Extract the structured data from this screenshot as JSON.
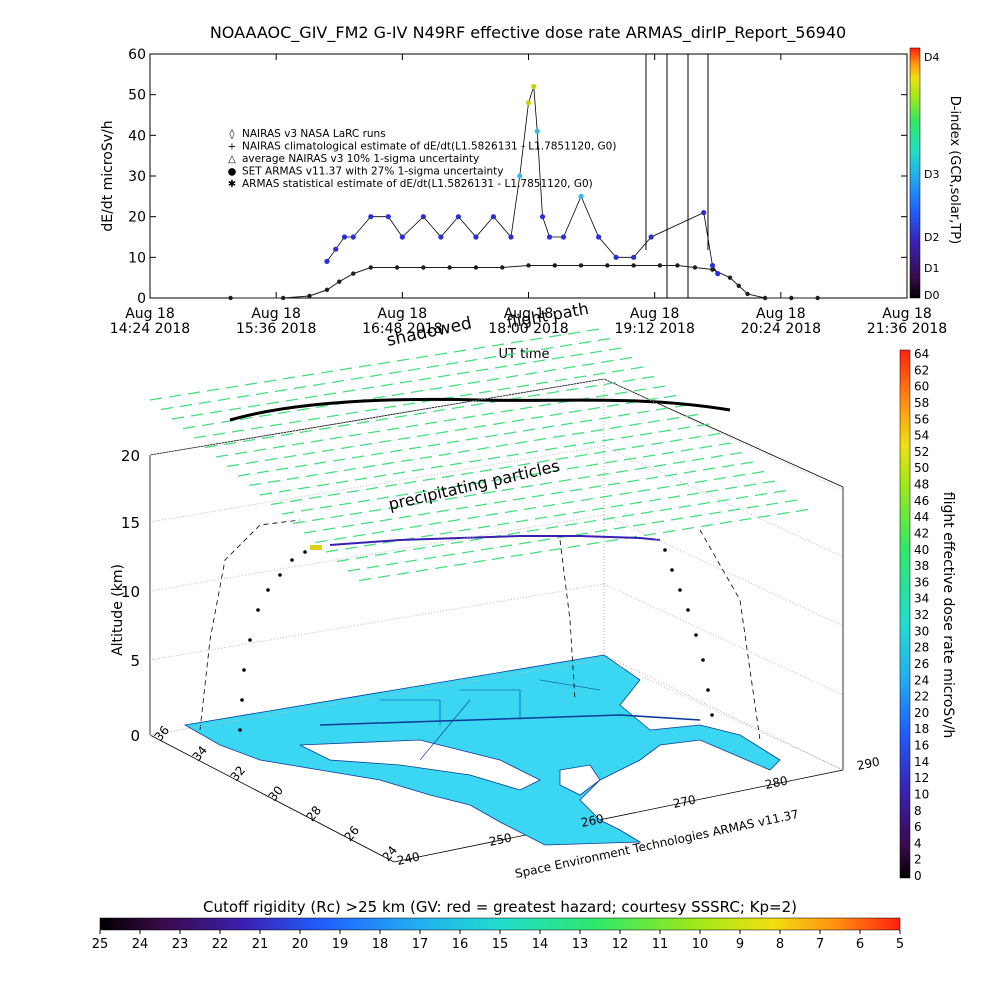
{
  "title": "NOAAAOC_GIV_FM2 G-IV    N49RF   effective dose rate ARMAS_dirIP_Report_56940",
  "top": {
    "ylabel": "dE/dt microSv/h",
    "xlabel": "UT time",
    "y_ticks": [
      "0",
      "10",
      "20",
      "30",
      "40",
      "50",
      "60"
    ],
    "x_ticks": [
      {
        "line1": "Aug 18",
        "line2": "14:24 2018"
      },
      {
        "line1": "Aug 18",
        "line2": "15:36 2018"
      },
      {
        "line1": "Aug 18",
        "line2": "16:48 2018"
      },
      {
        "line1": "Aug 18",
        "line2": "18:00 2018"
      },
      {
        "line1": "Aug 18",
        "line2": "19:12 2018"
      },
      {
        "line1": "Aug 18",
        "line2": "20:24 2018"
      },
      {
        "line1": "Aug 18",
        "line2": "21:36 2018"
      }
    ],
    "legend": [
      {
        "symbol": "◊",
        "text": "NAIRAS v3 NASA LaRC runs"
      },
      {
        "symbol": "+",
        "text": "NAIRAS climatological estimate of dE/dt(L1.5826131 - L1.7851120, G0)"
      },
      {
        "symbol": "△",
        "text": "average NAIRAS v3 10% 1-sigma uncertainty"
      },
      {
        "symbol": "●",
        "text": "SET ARMAS v11.37 with 27% 1-sigma uncertainty"
      },
      {
        "symbol": "✱",
        "text": "ARMAS statistical estimate of dE/dt(L1.5826131 - L1.7851120, G0)"
      }
    ],
    "overlay_shadowed": "shadowed",
    "overlay_flightpath": "flight path",
    "dindex_label": "D-index (GCR,solar,TP)",
    "dindex_ticks": [
      "D0",
      "D1",
      "D2",
      "D3",
      "D4"
    ]
  },
  "bottom": {
    "ylabel": "Altitude (km)",
    "z_ticks": [
      "0",
      "5",
      "10",
      "15",
      "20"
    ],
    "lat_ticks": [
      "36",
      "34",
      "32",
      "30",
      "28",
      "26",
      "24"
    ],
    "lon_ticks": [
      "240",
      "250",
      "260",
      "270",
      "280",
      "290"
    ],
    "precip_label": "precipitating particles",
    "credit": "Space Environment Technologies ARMAS v11.37",
    "colorbar_label": "flight effective dose rate microSv/h",
    "colorbar_ticks": [
      "0",
      "2",
      "4",
      "6",
      "8",
      "10",
      "12",
      "14",
      "16",
      "18",
      "20",
      "22",
      "24",
      "26",
      "28",
      "30",
      "32",
      "34",
      "36",
      "38",
      "40",
      "42",
      "44",
      "46",
      "48",
      "50",
      "52",
      "54",
      "56",
      "58",
      "60",
      "62",
      "64"
    ]
  },
  "cutoff": {
    "title": "Cutoff rigidity (Rc) >25 km (GV: red = greatest hazard; courtesy SSSRC; Kp=2)",
    "ticks": [
      "25",
      "24",
      "23",
      "22",
      "21",
      "20",
      "19",
      "18",
      "17",
      "16",
      "15",
      "14",
      "13",
      "12",
      "11",
      "10",
      "9",
      "8",
      "7",
      "6",
      "5"
    ]
  },
  "chart_data": [
    {
      "type": "scatter",
      "title": "NOAAAOC_GIV_FM2 G-IV    N49RF   effective dose rate ARMAS_dirIP_Report_56940",
      "xlabel": "UT time",
      "ylabel": "dE/dt microSv/h",
      "xlim": [
        "2018-08-18 14:24",
        "2018-08-18 21:36"
      ],
      "ylim": [
        0,
        60
      ],
      "legend_position": "upper-left",
      "series": [
        {
          "name": "NAIRAS v3 NASA LaRC runs",
          "x": [
            "15:10",
            "15:40",
            "15:55",
            "16:05",
            "16:12",
            "16:20",
            "16:30",
            "16:45",
            "17:00",
            "17:15",
            "17:30",
            "17:45",
            "18:00",
            "18:15",
            "18:30",
            "18:45",
            "19:00",
            "19:15",
            "19:25",
            "19:35",
            "19:45",
            "19:55",
            "20:00",
            "20:05",
            "20:15",
            "20:30",
            "20:45"
          ],
          "y": [
            0,
            0,
            0.5,
            2,
            4,
            6,
            7.5,
            7.5,
            7.5,
            7.5,
            7.5,
            7.5,
            8,
            8,
            8,
            8,
            8,
            8,
            8,
            7.5,
            7,
            5,
            3,
            1,
            0,
            0,
            0
          ]
        },
        {
          "name": "SET ARMAS v11.37 with 27% 1-sigma uncertainty",
          "x": [
            "16:05",
            "16:10",
            "16:15",
            "16:20",
            "16:30",
            "16:40",
            "16:48",
            "17:00",
            "17:10",
            "17:20",
            "17:30",
            "17:40",
            "17:50",
            "17:55",
            "18:00",
            "18:03",
            "18:05",
            "18:08",
            "18:12",
            "18:20",
            "18:30",
            "18:40",
            "18:50",
            "19:00",
            "19:10",
            "19:40",
            "19:45",
            "19:48"
          ],
          "y": [
            9,
            12,
            15,
            15,
            20,
            20,
            15,
            20,
            15,
            20,
            15,
            20,
            15,
            30,
            48,
            52,
            41,
            20,
            15,
            15,
            25,
            15,
            10,
            10,
            15,
            21,
            8,
            6
          ]
        }
      ]
    },
    {
      "type": "scatter",
      "title": "",
      "xlabel": "",
      "ylabel": "Altitude (km)",
      "zlim": [
        0,
        20
      ],
      "lat_range": [
        24,
        36
      ],
      "lon_range": [
        240,
        290
      ],
      "annotations": [
        "precipitating particles"
      ]
    }
  ],
  "colors": {
    "sea": "#3ad6f2",
    "coast": "#0a3a9a",
    "precip": "#3fe07a",
    "nairas": "#1e1e1e",
    "armas": "#2b2fd6",
    "armas_high": "#3ab9e8",
    "armas_peak": "#c8d400"
  }
}
